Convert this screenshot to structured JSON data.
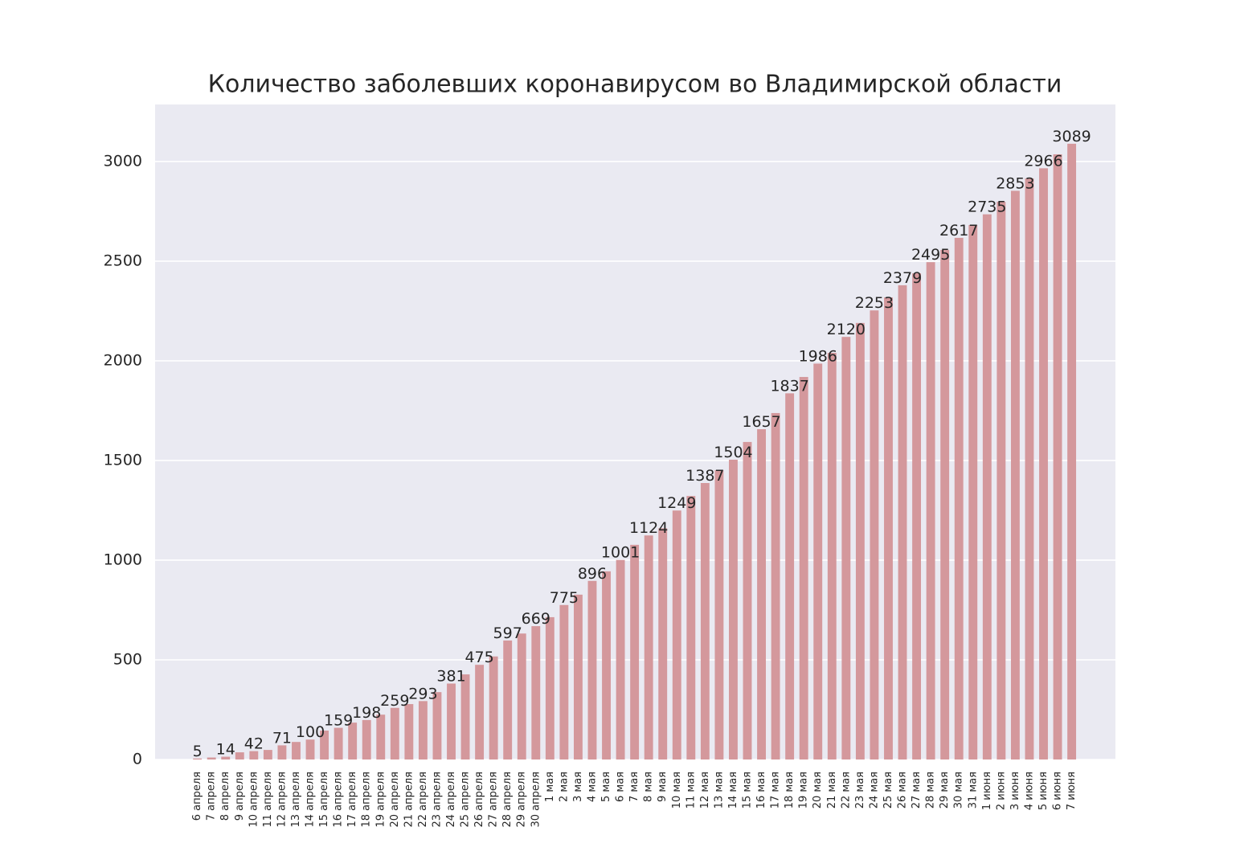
{
  "chart_data": {
    "type": "bar",
    "title": "Количество заболевших коронавирусом во Владимирской области",
    "categories": [
      "6 апреля",
      "7 апреля",
      "8 апреля",
      "9 апреля",
      "10 апреля",
      "11 апреля",
      "12 апреля",
      "13 апреля",
      "14 апреля",
      "15 апреля",
      "16 апреля",
      "17 апреля",
      "18 апреля",
      "19 апреля",
      "20 апреля",
      "21 апреля",
      "22 апреля",
      "23 апреля",
      "24 апреля",
      "25 апреля",
      "26 апреля",
      "27 апреля",
      "28 апреля",
      "29 апреля",
      "30 апреля",
      "1 мая",
      "2 мая",
      "3 мая",
      "4 мая",
      "5 мая",
      "6 мая",
      "7 мая",
      "8 мая",
      "9 мая",
      "10 мая",
      "11 мая",
      "12 мая",
      "13 мая",
      "14 мая",
      "15 мая",
      "16 мая",
      "17 мая",
      "18 мая",
      "19 мая",
      "20 мая",
      "21 мая",
      "22 мая",
      "23 мая",
      "24 мая",
      "25 мая",
      "26 мая",
      "27 мая",
      "28 мая",
      "29 мая",
      "30 мая",
      "31 мая",
      "1 июня",
      "2 июня",
      "3 июня",
      "4 июня",
      "5 июня",
      "6 июня",
      "7 июня"
    ],
    "values": [
      5,
      10,
      14,
      36,
      42,
      48,
      71,
      88,
      100,
      145,
      159,
      185,
      198,
      225,
      259,
      278,
      293,
      338,
      381,
      427,
      475,
      517,
      597,
      632,
      669,
      714,
      775,
      827,
      896,
      944,
      1001,
      1077,
      1124,
      1160,
      1249,
      1322,
      1387,
      1451,
      1504,
      1593,
      1657,
      1738,
      1837,
      1919,
      1986,
      2040,
      2120,
      2190,
      2253,
      2318,
      2379,
      2439,
      2495,
      2556,
      2617,
      2681,
      2735,
      2798,
      2853,
      2915,
      2966,
      3036,
      3089
    ],
    "value_labels": [
      "5",
      null,
      "14",
      null,
      "42",
      null,
      "71",
      null,
      "100",
      null,
      "159",
      null,
      "198",
      null,
      "259",
      null,
      "293",
      null,
      "381",
      null,
      "475",
      null,
      "597",
      null,
      "669",
      null,
      "775",
      null,
      "896",
      null,
      "1001",
      null,
      "1124",
      null,
      "1249",
      null,
      "1387",
      null,
      "1504",
      null,
      "1657",
      null,
      "1837",
      null,
      "1986",
      null,
      "2120",
      null,
      "2253",
      null,
      "2379",
      null,
      "2495",
      null,
      "2617",
      null,
      "2735",
      null,
      "2853",
      null,
      "2966",
      null,
      "3089"
    ],
    "color": "#d4989c",
    "ylim": [
      0,
      3286
    ],
    "yticks": [
      0,
      500,
      1000,
      1500,
      2000,
      2500,
      3000
    ],
    "grid": true
  }
}
